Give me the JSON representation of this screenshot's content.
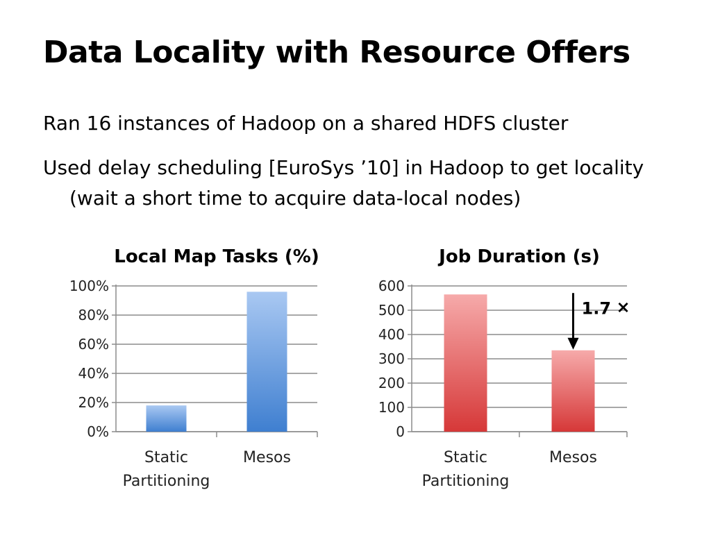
{
  "slide": {
    "title": "Data Locality with Resource Offers",
    "bullets": [
      "Ran 16 instances of Hadoop on a shared HDFS cluster",
      "Used delay scheduling [EuroSys ’10] in Hadoop to get locality (wait a short time to acquire data-local nodes)"
    ]
  },
  "chart_data": [
    {
      "type": "bar",
      "title": "Local Map Tasks (%)",
      "categories": [
        "Static Partitioning",
        "Mesos"
      ],
      "category_lines": [
        [
          "Static",
          "Partitioning"
        ],
        [
          "Mesos"
        ]
      ],
      "values": [
        18,
        96
      ],
      "ylim": [
        0,
        100
      ],
      "yticks": [
        "0%",
        "20%",
        "40%",
        "60%",
        "80%",
        "100%"
      ],
      "grid": true,
      "colors": [
        "#a9c8f2",
        "#3f7fd0"
      ]
    },
    {
      "type": "bar",
      "title": "Job Duration (s)",
      "categories": [
        "Static Partitioning",
        "Mesos"
      ],
      "category_lines": [
        [
          "Static",
          "Partitioning"
        ],
        [
          "Mesos"
        ]
      ],
      "values": [
        565,
        335
      ],
      "ylim": [
        0,
        600
      ],
      "yticks": [
        "0",
        "100",
        "200",
        "300",
        "400",
        "500",
        "600"
      ],
      "grid": true,
      "colors": [
        "#f6aaaa",
        "#d63838"
      ],
      "annotation": {
        "text": "1.7",
        "symbol": "×"
      }
    }
  ]
}
